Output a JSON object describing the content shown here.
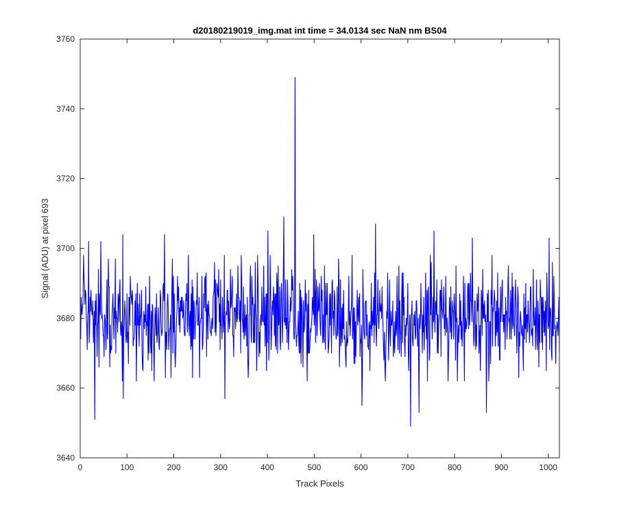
{
  "chart_data": {
    "type": "line",
    "title": "d20180219019_img.mat int time = 34.0134 sec  NaN nm BS04",
    "xlabel": "Track Pixels",
    "ylabel": "Signal (ADU) at pixel 693",
    "xlim": [
      0,
      1024
    ],
    "ylim": [
      3640,
      3760
    ],
    "xticks": [
      0,
      100,
      200,
      300,
      400,
      500,
      600,
      700,
      800,
      900,
      1000
    ],
    "yticks": [
      3640,
      3660,
      3680,
      3700,
      3720,
      3740,
      3760
    ],
    "grid": false,
    "line_color": "#0000ff",
    "series": [
      {
        "x_start": 1,
        "x_step": 1,
        "length": 1024,
        "baseline_mean": 3680,
        "noise_std": 7,
        "notable_points": [
          {
            "x": 459,
            "y": 3749
          },
          {
            "x": 435,
            "y": 3709
          },
          {
            "x": 31,
            "y": 3651
          },
          {
            "x": 706,
            "y": 3649
          },
          {
            "x": 724,
            "y": 3653
          },
          {
            "x": 868,
            "y": 3653
          },
          {
            "x": 602,
            "y": 3655
          },
          {
            "x": 309,
            "y": 3657
          },
          {
            "x": 92,
            "y": 3657
          },
          {
            "x": 631,
            "y": 3707
          },
          {
            "x": 18,
            "y": 3702
          },
          {
            "x": 44,
            "y": 3702
          },
          {
            "x": 180,
            "y": 3704
          },
          {
            "x": 91,
            "y": 3704
          },
          {
            "x": 401,
            "y": 3705
          },
          {
            "x": 499,
            "y": 3704
          },
          {
            "x": 756,
            "y": 3705
          },
          {
            "x": 1002,
            "y": 3703
          },
          {
            "x": 838,
            "y": 3703
          }
        ]
      }
    ]
  }
}
